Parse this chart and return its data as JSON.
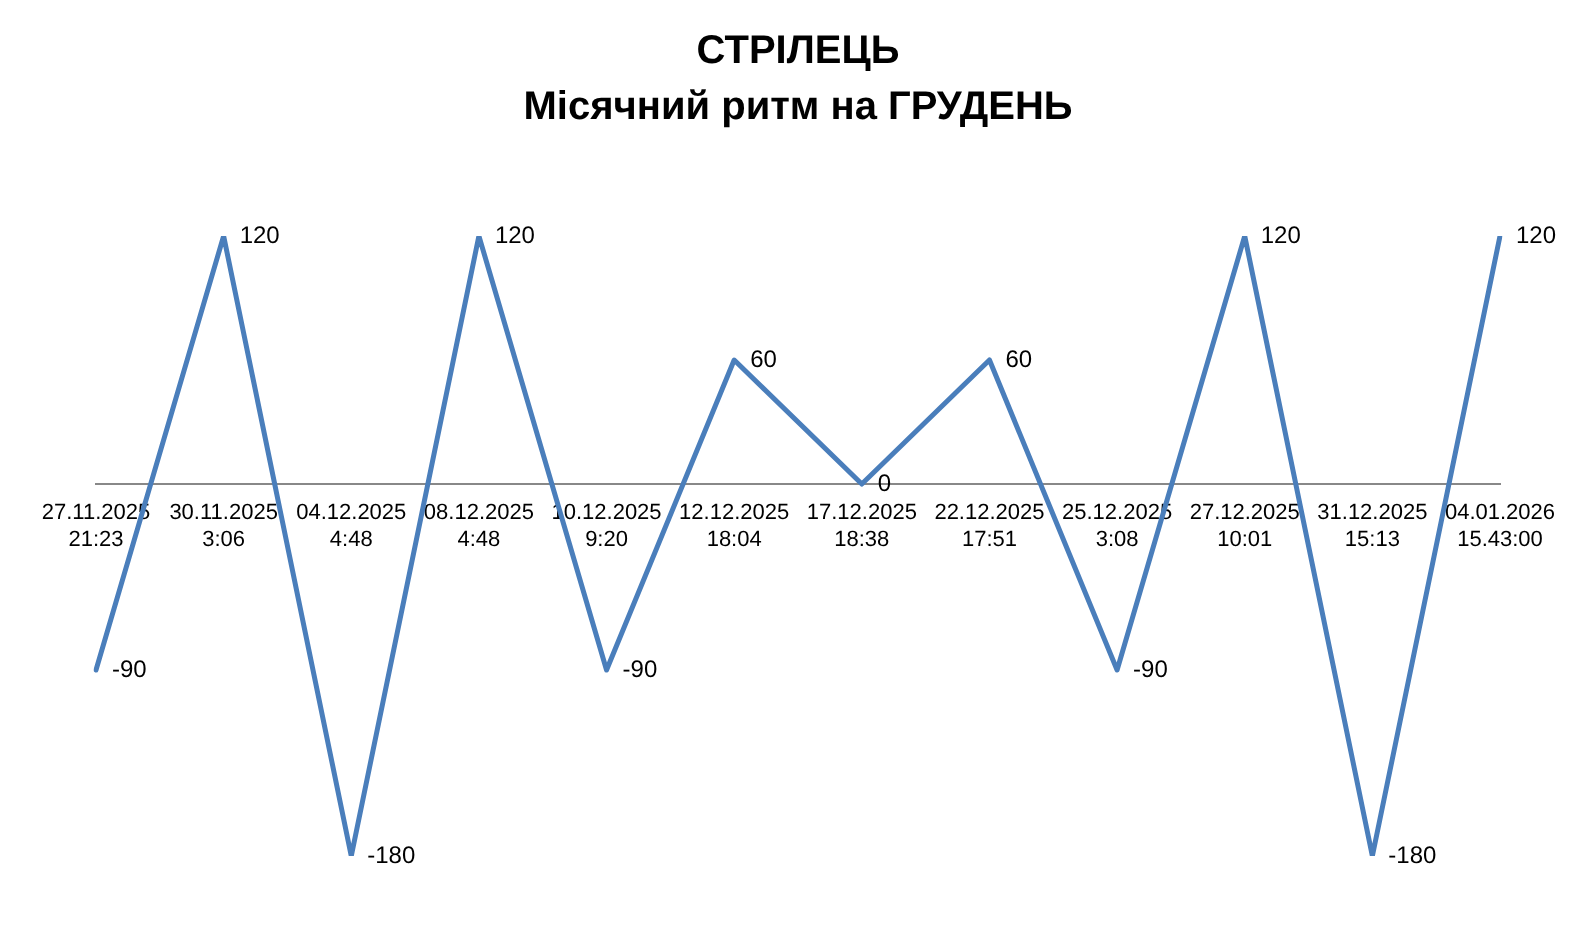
{
  "chart_data": {
    "type": "line",
    "title": "СТРІЛЕЦЬ",
    "subtitle": "Місячний ритм на ГРУДЕНЬ",
    "categories": [
      "27.11.2025\n21:23",
      "30.11.2025\n3:06",
      "04.12.2025\n4:48",
      "08.12.2025\n4:48",
      "10.12.2025\n9:20",
      "12.12.2025\n18:04",
      "17.12.2025\n18:38",
      "22.12.2025\n17:51",
      "25.12.2025\n3:08",
      "27.12.2025\n10:01",
      "31.12.2025\n15:13",
      "04.01.2026\n15.43:00"
    ],
    "series": [
      {
        "color": "#4a7ebb",
        "values": [
          -90,
          120,
          -180,
          120,
          -90,
          60,
          0,
          60,
          -90,
          120,
          -180,
          120
        ]
      }
    ],
    "data_labels": true,
    "grid": false,
    "legend": false,
    "marker": "none",
    "line_style": "solid"
  }
}
